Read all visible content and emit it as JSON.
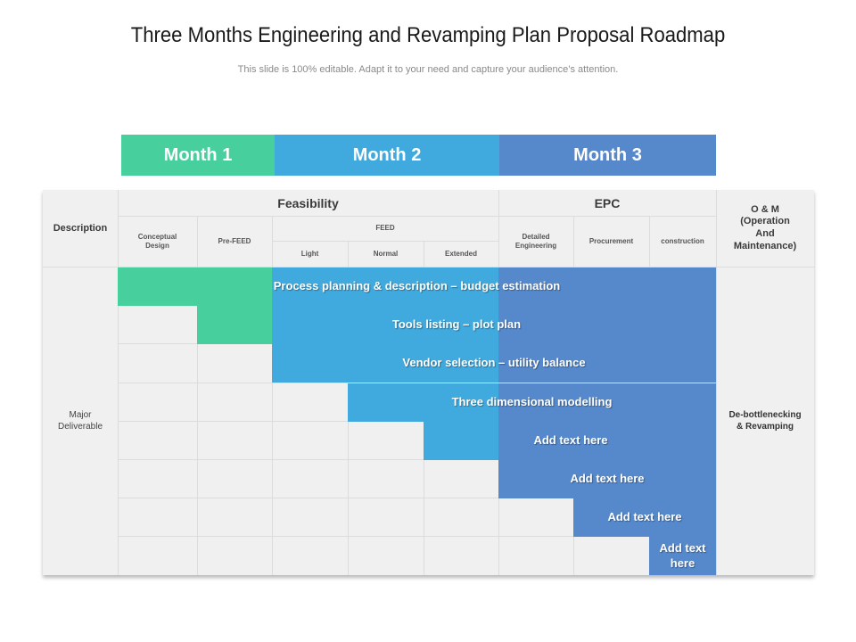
{
  "title": "Three Months Engineering and Revamping Plan Proposal Roadmap",
  "subtitle": "This slide is 100% editable. Adapt it to your need and capture your audience’s attention.",
  "months": [
    "Month 1",
    "Month 2",
    "Month 3"
  ],
  "colors": {
    "month1": "#48cf9e",
    "month2": "#40a9dd",
    "month3": "#5589cc",
    "cell": "#f0f0f0"
  },
  "header": {
    "description": "Description",
    "feasibility": "Feasibility",
    "epc": "EPC",
    "om": "O & M (Operation And Maintenance)",
    "conceptual_design": "Conceptual Design",
    "pre_feed": "Pre-FEED",
    "feed": "FEED",
    "light": "Light",
    "normal": "Normal",
    "extended": "Extended",
    "detailed_engineering": "Detailed Engineering",
    "procurement": "Procurement",
    "construction": "construction"
  },
  "rows": {
    "label": "Major Deliverable",
    "om_label": "De-bottlenecking & Revamping",
    "tasks": [
      "Process planning & description – budget estimation",
      "Tools listing – plot plan",
      "Vendor selection – utility balance",
      "Three dimensional modelling",
      "Add text here",
      "Add text here",
      "Add text here",
      "Add text here"
    ]
  }
}
